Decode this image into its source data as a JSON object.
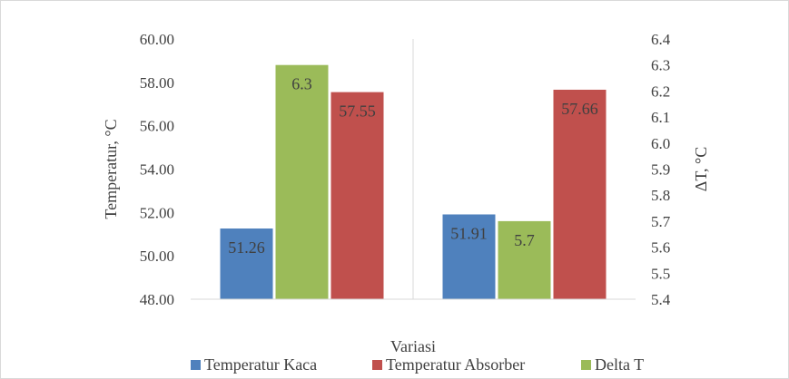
{
  "chart_data": {
    "type": "bar",
    "title": "",
    "xlabel": "Variasi",
    "ylabel": "Temperatur, °C",
    "y2label": "ΔT, °C",
    "categories": [
      "",
      ""
    ],
    "ylim": [
      48,
      60
    ],
    "y_ticks": [
      "48.00",
      "50.00",
      "52.00",
      "54.00",
      "56.00",
      "58.00",
      "60.00"
    ],
    "y2lim": [
      5.4,
      6.4
    ],
    "y2_ticks": [
      "5.4",
      "5.5",
      "5.6",
      "5.7",
      "5.8",
      "5.9",
      "6.0",
      "6.1",
      "6.2",
      "6.3",
      "6.4"
    ],
    "grid": "vertical separator between categories",
    "legend_position": "bottom",
    "series": [
      {
        "name": "Temperatur Kaca",
        "axis": "left",
        "color": "#4f81bd",
        "values": [
          51.26,
          51.91
        ],
        "labels": [
          "51.26",
          "51.91"
        ]
      },
      {
        "name": "Delta T",
        "axis": "right",
        "color": "#9bbb59",
        "values": [
          6.3,
          5.7
        ],
        "labels": [
          "6.3",
          "5.7"
        ]
      },
      {
        "name": "Temperatur Absorber",
        "axis": "left",
        "color": "#c0504d",
        "values": [
          57.55,
          57.66
        ],
        "labels": [
          "57.55",
          "57.66"
        ]
      }
    ],
    "legend_order": [
      "Temperatur Kaca",
      "Temperatur Absorber",
      "Delta T"
    ]
  }
}
